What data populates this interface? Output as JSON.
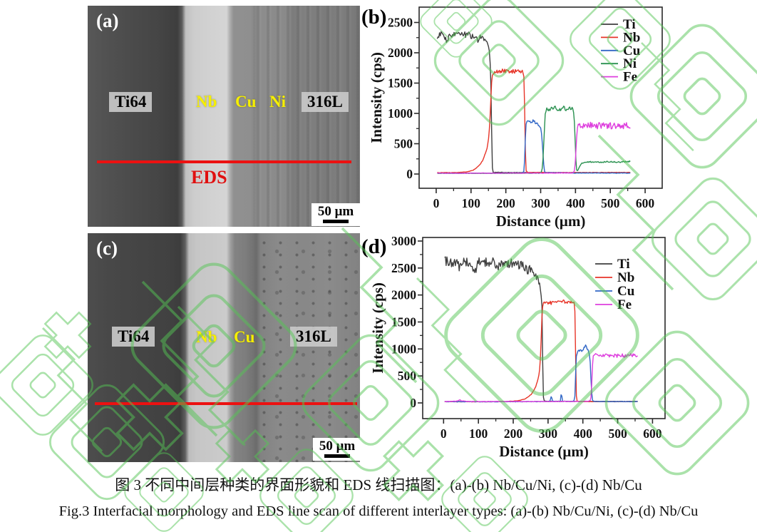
{
  "figure": {
    "caption_zh": "图 3  不同中间层种类的界面形貌和 EDS 线扫描图：(a)-(b) Nb/Cu/Ni, (c)-(d) Nb/Cu",
    "caption_en": "Fig.3 Interfacial morphology and EDS line scan of different interlayer types: (a)-(b) Nb/Cu/Ni, (c)-(d) Nb/Cu"
  },
  "panels": {
    "a": {
      "tag": "(a)",
      "labels": {
        "left": "Ti64",
        "band1": "Nb",
        "band2": "Cu",
        "band3": "Ni",
        "right": "316L"
      },
      "eds_label": "EDS",
      "scale_label": "50 μm"
    },
    "c": {
      "tag": "(c)",
      "labels": {
        "left": "Ti64",
        "band1": "Nb",
        "band2": "Cu",
        "right": "316L"
      },
      "scale_label": "50 μm"
    }
  },
  "watermark": {
    "color": "#55c555"
  },
  "chart_data": [
    {
      "id": "chart-b",
      "tag": "(b)",
      "type": "line",
      "xlabel": "Distance (μm)",
      "ylabel": "Intensity (cps)",
      "xlim": [
        -49,
        649
      ],
      "ylim": [
        -235,
        2753
      ],
      "xticks": [
        0,
        100,
        200,
        300,
        400,
        500,
        600
      ],
      "yticks": [
        0,
        500,
        1000,
        1500,
        2000,
        2500
      ],
      "grid": false,
      "legend_position": "top-right-inside",
      "series": [
        {
          "name": "Ti",
          "color": "#3e3e3e",
          "noise": 0.022,
          "points": [
            [
              3,
              2280
            ],
            [
              15,
              2310
            ],
            [
              34,
              2180
            ],
            [
              36,
              2300
            ],
            [
              70,
              2320
            ],
            [
              95,
              2290
            ],
            [
              115,
              2270
            ],
            [
              122,
              2160
            ],
            [
              124,
              2260
            ],
            [
              130,
              2250
            ],
            [
              140,
              2230
            ],
            [
              147,
              2170
            ],
            [
              151,
              2080
            ],
            [
              154,
              1950
            ],
            [
              157,
              1500
            ],
            [
              159,
              800
            ],
            [
              161,
              120
            ],
            [
              163,
              30
            ],
            [
              200,
              26
            ],
            [
              300,
              24
            ],
            [
              450,
              22
            ],
            [
              559,
              22
            ]
          ]
        },
        {
          "name": "Nb",
          "color": "#e73529",
          "noise": 0.02,
          "points": [
            [
              3,
              22
            ],
            [
              60,
              24
            ],
            [
              90,
              35
            ],
            [
              105,
              60
            ],
            [
              115,
              95
            ],
            [
              125,
              150
            ],
            [
              133,
              220
            ],
            [
              140,
              320
            ],
            [
              146,
              430
            ],
            [
              150,
              560
            ],
            [
              153,
              760
            ],
            [
              156,
              1100
            ],
            [
              159,
              1500
            ],
            [
              162,
              1670
            ],
            [
              175,
              1690
            ],
            [
              195,
              1700
            ],
            [
              215,
              1685
            ],
            [
              235,
              1700
            ],
            [
              248,
              1688
            ],
            [
              252,
              1600
            ],
            [
              254,
              1100
            ],
            [
              256,
              400
            ],
            [
              258,
              60
            ],
            [
              262,
              26
            ],
            [
              350,
              24
            ],
            [
              559,
              26
            ]
          ]
        },
        {
          "name": "Cu",
          "color": "#3066c6",
          "noise": 0.035,
          "points": [
            [
              3,
              14
            ],
            [
              150,
              14
            ],
            [
              240,
              16
            ],
            [
              250,
              18
            ],
            [
              253,
              80
            ],
            [
              255,
              420
            ],
            [
              257,
              760
            ],
            [
              259,
              860
            ],
            [
              266,
              880
            ],
            [
              274,
              870
            ],
            [
              282,
              860
            ],
            [
              288,
              835
            ],
            [
              294,
              800
            ],
            [
              299,
              770
            ],
            [
              302,
              700
            ],
            [
              305,
              500
            ],
            [
              308,
              220
            ],
            [
              310,
              60
            ],
            [
              313,
              22
            ],
            [
              400,
              16
            ],
            [
              559,
              16
            ]
          ]
        },
        {
          "name": "Ni",
          "color": "#2a9150",
          "noise": 0.035,
          "points": [
            [
              3,
              12
            ],
            [
              200,
              12
            ],
            [
              296,
              14
            ],
            [
              300,
              20
            ],
            [
              304,
              60
            ],
            [
              307,
              260
            ],
            [
              310,
              650
            ],
            [
              313,
              980
            ],
            [
              316,
              1070
            ],
            [
              325,
              1075
            ],
            [
              340,
              1085
            ],
            [
              355,
              1070
            ],
            [
              368,
              1085
            ],
            [
              380,
              1075
            ],
            [
              390,
              1095
            ],
            [
              394,
              1060
            ],
            [
              397,
              850
            ],
            [
              400,
              400
            ],
            [
              402,
              120
            ],
            [
              404,
              45
            ],
            [
              407,
              60
            ],
            [
              411,
              120
            ],
            [
              416,
              170
            ],
            [
              425,
              195
            ],
            [
              445,
              200
            ],
            [
              470,
              195
            ],
            [
              495,
              205
            ],
            [
              520,
              195
            ],
            [
              545,
              205
            ],
            [
              559,
              208
            ]
          ]
        },
        {
          "name": "Fe",
          "color": "#de3fde",
          "noise": 0.065,
          "points": [
            [
              3,
              14
            ],
            [
              200,
              14
            ],
            [
              350,
              16
            ],
            [
              388,
              18
            ],
            [
              394,
              22
            ],
            [
              398,
              70
            ],
            [
              401,
              350
            ],
            [
              404,
              680
            ],
            [
              407,
              800
            ],
            [
              415,
              815
            ],
            [
              430,
              795
            ],
            [
              445,
              810
            ],
            [
              460,
              790
            ],
            [
              478,
              805
            ],
            [
              495,
              790
            ],
            [
              512,
              805
            ],
            [
              530,
              790
            ],
            [
              548,
              800
            ],
            [
              559,
              780
            ]
          ]
        }
      ]
    },
    {
      "id": "chart-d",
      "tag": "(d)",
      "type": "line",
      "xlabel": "Distance (μm)",
      "ylabel": "Intensity (cps)",
      "xlim": [
        -60,
        636
      ],
      "ylim": [
        -291,
        3066
      ],
      "xticks": [
        0,
        100,
        200,
        300,
        400,
        500,
        600
      ],
      "yticks": [
        0,
        500,
        1000,
        1500,
        2000,
        2500,
        3000
      ],
      "grid": false,
      "legend_position": "top-right-inside",
      "series": [
        {
          "name": "Ti",
          "color": "#3e3e3e",
          "noise": 0.034,
          "points": [
            [
              3,
              2640
            ],
            [
              20,
              2600
            ],
            [
              44,
              2600
            ],
            [
              46,
              2400
            ],
            [
              48,
              2610
            ],
            [
              70,
              2610
            ],
            [
              94,
              2450
            ],
            [
              96,
              2600
            ],
            [
              120,
              2600
            ],
            [
              145,
              2615
            ],
            [
              158,
              2480
            ],
            [
              160,
              2610
            ],
            [
              190,
              2590
            ],
            [
              210,
              2570
            ],
            [
              225,
              2545
            ],
            [
              238,
              2510
            ],
            [
              243,
              2330
            ],
            [
              245,
              2520
            ],
            [
              252,
              2470
            ],
            [
              258,
              2430
            ],
            [
              263,
              2380
            ],
            [
              268,
              2330
            ],
            [
              272,
              2280
            ],
            [
              276,
              2180
            ],
            [
              279,
              2060
            ],
            [
              281,
              1920
            ],
            [
              283,
              1750
            ],
            [
              284,
              1200
            ],
            [
              285,
              500
            ],
            [
              287,
              60
            ],
            [
              290,
              32
            ],
            [
              350,
              28
            ],
            [
              450,
              26
            ],
            [
              559,
              26
            ]
          ]
        },
        {
          "name": "Nb",
          "color": "#e73529",
          "noise": 0.018,
          "points": [
            [
              3,
              22
            ],
            [
              120,
              22
            ],
            [
              180,
              26
            ],
            [
              205,
              34
            ],
            [
              220,
              48
            ],
            [
              232,
              70
            ],
            [
              242,
              105
            ],
            [
              252,
              160
            ],
            [
              259,
              230
            ],
            [
              265,
              310
            ],
            [
              269,
              390
            ],
            [
              272,
              470
            ],
            [
              275,
              560
            ],
            [
              277,
              700
            ],
            [
              279,
              950
            ],
            [
              281,
              1350
            ],
            [
              283,
              1700
            ],
            [
              286,
              1860
            ],
            [
              295,
              1870
            ],
            [
              308,
              1855
            ],
            [
              320,
              1880
            ],
            [
              333,
              1860
            ],
            [
              346,
              1875
            ],
            [
              358,
              1865
            ],
            [
              370,
              1880
            ],
            [
              375,
              1860
            ],
            [
              377,
              1700
            ],
            [
              379,
              900
            ],
            [
              381,
              150
            ],
            [
              383,
              35
            ],
            [
              390,
              26
            ],
            [
              500,
              24
            ],
            [
              559,
              26
            ]
          ]
        },
        {
          "name": "Cu",
          "color": "#3066c6",
          "noise": 0.038,
          "points": [
            [
              3,
              22
            ],
            [
              150,
              22
            ],
            [
              280,
              24
            ],
            [
              305,
              26
            ],
            [
              308,
              90
            ],
            [
              310,
              150
            ],
            [
              312,
              30
            ],
            [
              335,
              26
            ],
            [
              337,
              140
            ],
            [
              339,
              165
            ],
            [
              341,
              32
            ],
            [
              360,
              26
            ],
            [
              374,
              28
            ],
            [
              377,
              120
            ],
            [
              379,
              520
            ],
            [
              381,
              840
            ],
            [
              383,
              930
            ],
            [
              388,
              945
            ],
            [
              394,
              955
            ],
            [
              400,
              985
            ],
            [
              405,
              1020
            ],
            [
              408,
              1075
            ],
            [
              411,
              1015
            ],
            [
              414,
              975
            ],
            [
              417,
              945
            ],
            [
              419,
              900
            ],
            [
              421,
              760
            ],
            [
              423,
              480
            ],
            [
              425,
              220
            ],
            [
              427,
              70
            ],
            [
              429,
              30
            ],
            [
              460,
              24
            ],
            [
              559,
              24
            ]
          ]
        },
        {
          "name": "Fe",
          "color": "#de3fde",
          "noise": 0.035,
          "points": [
            [
              3,
              26
            ],
            [
              35,
              30
            ],
            [
              48,
              55
            ],
            [
              52,
              34
            ],
            [
              90,
              26
            ],
            [
              200,
              26
            ],
            [
              330,
              26
            ],
            [
              400,
              28
            ],
            [
              416,
              30
            ],
            [
              421,
              45
            ],
            [
              424,
              120
            ],
            [
              426,
              420
            ],
            [
              428,
              760
            ],
            [
              430,
              880
            ],
            [
              437,
              900
            ],
            [
              448,
              875
            ],
            [
              460,
              890
            ],
            [
              472,
              865
            ],
            [
              485,
              885
            ],
            [
              498,
              870
            ],
            [
              510,
              885
            ],
            [
              522,
              865
            ],
            [
              535,
              890
            ],
            [
              548,
              875
            ],
            [
              559,
              885
            ]
          ]
        }
      ]
    }
  ]
}
